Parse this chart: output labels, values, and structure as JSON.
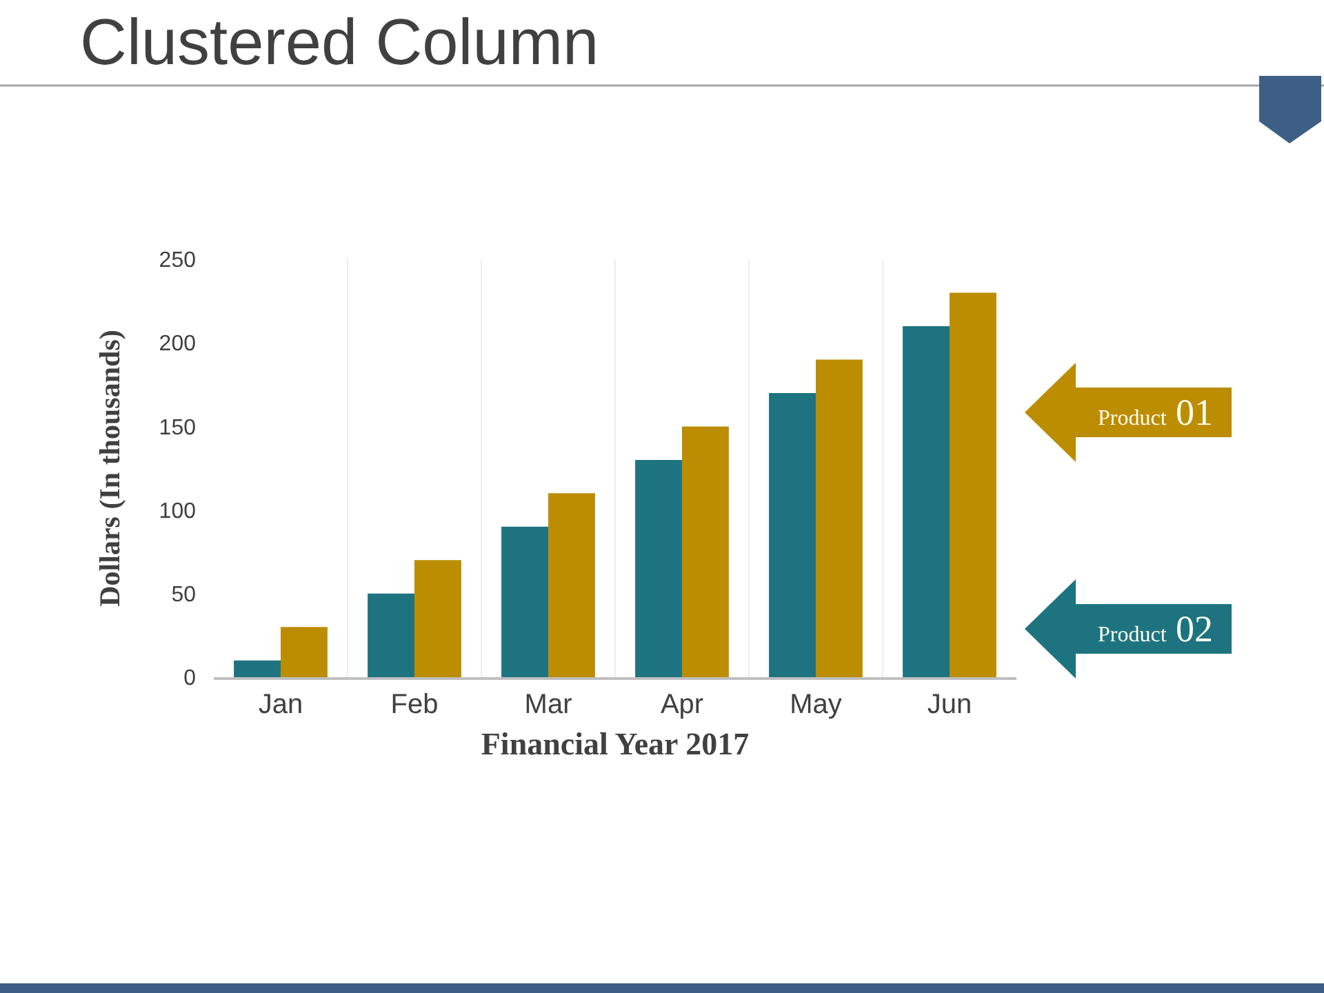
{
  "chart_data": {
    "type": "bar",
    "title": "Clustered Column",
    "xlabel": "Financial Year 2017",
    "ylabel": "Dollars (In thousands)",
    "categories": [
      "Jan",
      "Feb",
      "Mar",
      "Apr",
      "May",
      "Jun"
    ],
    "series": [
      {
        "name": "Product 02",
        "color": "#1d7480",
        "values": [
          10,
          50,
          90,
          130,
          170,
          210
        ]
      },
      {
        "name": "Product 01",
        "color": "#bc8d00",
        "values": [
          30,
          70,
          110,
          150,
          190,
          230
        ]
      }
    ],
    "ylim": [
      0,
      250
    ],
    "yticks": [
      0,
      50,
      100,
      150,
      200,
      250
    ],
    "grid": "x",
    "legend": "right"
  }
}
